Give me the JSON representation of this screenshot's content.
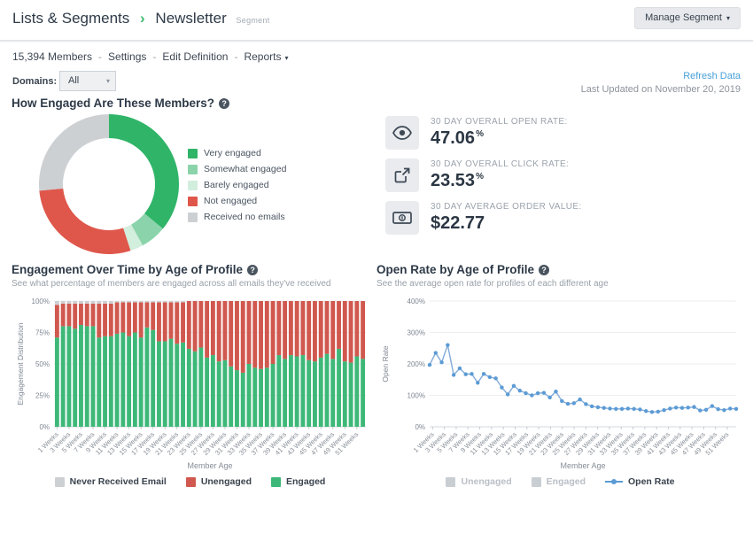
{
  "icons": {
    "help": "?",
    "caret_down": "▾",
    "breadcrumb_sep": "›"
  },
  "header": {
    "breadcrumb": {
      "parent": "Lists & Segments",
      "current": "Newsletter",
      "badge": "Segment"
    },
    "manage_button": "Manage Segment"
  },
  "subheader": {
    "members": "15,394 Members",
    "separator": "-",
    "links": [
      "Settings",
      "Edit Definition"
    ],
    "reports": "Reports"
  },
  "filter": {
    "domains_label": "Domains:",
    "domains_value": "All",
    "refresh_link": "Refresh Data",
    "last_updated": "Last Updated on November 20, 2019"
  },
  "sections": {
    "engagement": {
      "title": "How Engaged Are These Members?"
    }
  },
  "stats": [
    {
      "icon": "eye-icon",
      "label": "30 DAY OVERALL OPEN RATE:",
      "value": "47.06",
      "unit": "%"
    },
    {
      "icon": "external-link-icon",
      "label": "30 DAY OVERALL CLICK RATE:",
      "value": "23.53",
      "unit": "%"
    },
    {
      "icon": "money-bill-icon",
      "label": "30 DAY AVERAGE ORDER VALUE:",
      "value": "$22.77",
      "unit": ""
    }
  ],
  "chart_data": [
    {
      "type": "pie",
      "donut": true,
      "title": "How Engaged Are These Members?",
      "labels": [
        "Very engaged",
        "Somewhat engaged",
        "Barely engaged",
        "Not engaged",
        "Received no emails"
      ],
      "values": [
        36,
        6,
        3,
        28.5,
        26.5
      ],
      "colors": [
        "#30b468",
        "#8bd4ab",
        "#d2eedd",
        "#df574b",
        "#cdd0d3"
      ],
      "legend_position": "right"
    },
    {
      "type": "bar",
      "stacked": true,
      "title": "Engagement Over Time by Age of Profile",
      "subtitle": "See what percentage of members are engaged across all emails they've received",
      "xlabel": "Member Age",
      "ylabel": "Engagement Distribution",
      "ylim": [
        0,
        100
      ],
      "yticks": [
        "0%",
        "25%",
        "50%",
        "75%",
        "100%"
      ],
      "ytick_values": [
        0,
        25,
        50,
        75,
        100
      ],
      "n_points": 52,
      "xtick_labels": [
        "1 Weeks",
        "3 Weeks",
        "5 Weeks",
        "7 Weeks",
        "9 Weeks",
        "11 Weeks",
        "13 Weeks",
        "15 Weeks",
        "17 Weeks",
        "19 Weeks",
        "21 Weeks",
        "23 Weeks",
        "25 Weeks",
        "27 Weeks",
        "29 Weeks",
        "31 Weeks",
        "33 Weeks",
        "35 Weeks",
        "37 Weeks",
        "39 Weeks",
        "41 Weeks",
        "43 Weeks",
        "45 Weeks",
        "47 Weeks",
        "49 Weeks",
        "51 Weeks"
      ],
      "series": [
        {
          "name": "Engaged",
          "color": "#3db878",
          "values": [
            71,
            80,
            80,
            78,
            81,
            80,
            80,
            71,
            72,
            72,
            74,
            75,
            72,
            75,
            71,
            79,
            77,
            68,
            68,
            70,
            66,
            67,
            62,
            60,
            63,
            55,
            57,
            52,
            53,
            48,
            45,
            43,
            50,
            47,
            46,
            47,
            50,
            57,
            54,
            57,
            56,
            57,
            53,
            52,
            55,
            58,
            54,
            62,
            52,
            51,
            56,
            54
          ]
        },
        {
          "name": "Unengaged",
          "color": "#d0584e",
          "values": [
            26,
            18,
            18,
            20,
            17,
            18,
            18,
            27,
            26,
            26,
            25,
            24,
            27,
            24,
            28,
            20,
            22,
            31,
            31,
            29,
            33,
            32,
            38,
            40,
            37,
            45,
            43,
            48,
            47,
            52,
            55,
            57,
            50,
            53,
            54,
            53,
            50,
            43,
            46,
            43,
            44,
            43,
            47,
            48,
            45,
            42,
            46,
            38,
            48,
            49,
            44,
            46
          ]
        },
        {
          "name": "Never Received Email",
          "color": "#cdd0d3",
          "values": [
            3,
            2,
            2,
            2,
            2,
            2,
            2,
            2,
            2,
            2,
            1,
            1,
            1,
            1,
            1,
            1,
            1,
            1,
            1,
            1,
            1,
            1,
            0,
            0,
            0,
            0,
            0,
            0,
            0,
            0,
            0,
            0,
            0,
            0,
            0,
            0,
            0,
            0,
            0,
            0,
            0,
            0,
            0,
            0,
            0,
            0,
            0,
            0,
            0,
            0,
            0,
            0
          ]
        }
      ],
      "legend": [
        {
          "label": "Never Received Email",
          "color": "#cdd0d3"
        },
        {
          "label": "Unengaged",
          "color": "#d0584e"
        },
        {
          "label": "Engaged",
          "color": "#3db878"
        }
      ]
    },
    {
      "type": "line",
      "title": "Open Rate by Age of Profile",
      "subtitle": "See the average open rate for profiles of each different age",
      "xlabel": "Member Age",
      "ylabel": "Open Rate",
      "ylim": [
        0,
        400
      ],
      "yticks": [
        "0%",
        "100%",
        "200%",
        "300%",
        "400%"
      ],
      "ytick_values": [
        0,
        100,
        200,
        300,
        400
      ],
      "n_points": 52,
      "xtick_labels": [
        "1 Weeks",
        "3 Weeks",
        "5 Weeks",
        "7 Weeks",
        "9 Weeks",
        "11 Weeks",
        "13 Weeks",
        "15 Weeks",
        "17 Weeks",
        "19 Weeks",
        "21 Weeks",
        "23 Weeks",
        "25 Weeks",
        "27 Weeks",
        "29 Weeks",
        "31 Weeks",
        "33 Weeks",
        "35 Weeks",
        "37 Weeks",
        "39 Weeks",
        "41 Weeks",
        "43 Weeks",
        "45 Weeks",
        "47 Weeks",
        "49 Weeks",
        "51 Weeks"
      ],
      "series": [
        {
          "name": "Open Rate",
          "color": "#5b9bd5",
          "line_color": "#82abd8",
          "values": [
            197,
            235,
            205,
            260,
            165,
            186,
            167,
            168,
            140,
            168,
            158,
            154,
            125,
            103,
            130,
            115,
            107,
            100,
            107,
            108,
            93,
            112,
            82,
            73,
            75,
            87,
            72,
            65,
            62,
            60,
            58,
            57,
            57,
            58,
            57,
            55,
            50,
            47,
            48,
            53,
            58,
            61,
            60,
            61,
            63,
            52,
            54,
            66,
            56,
            53,
            58,
            57
          ]
        }
      ],
      "legend": [
        {
          "label": "Unengaged",
          "color": "#c9ced3",
          "disabled": true
        },
        {
          "label": "Engaged",
          "color": "#c9ced3",
          "disabled": true
        },
        {
          "label": "Open Rate",
          "color": "#5b9bd5",
          "marker": "line-dot"
        }
      ]
    }
  ]
}
